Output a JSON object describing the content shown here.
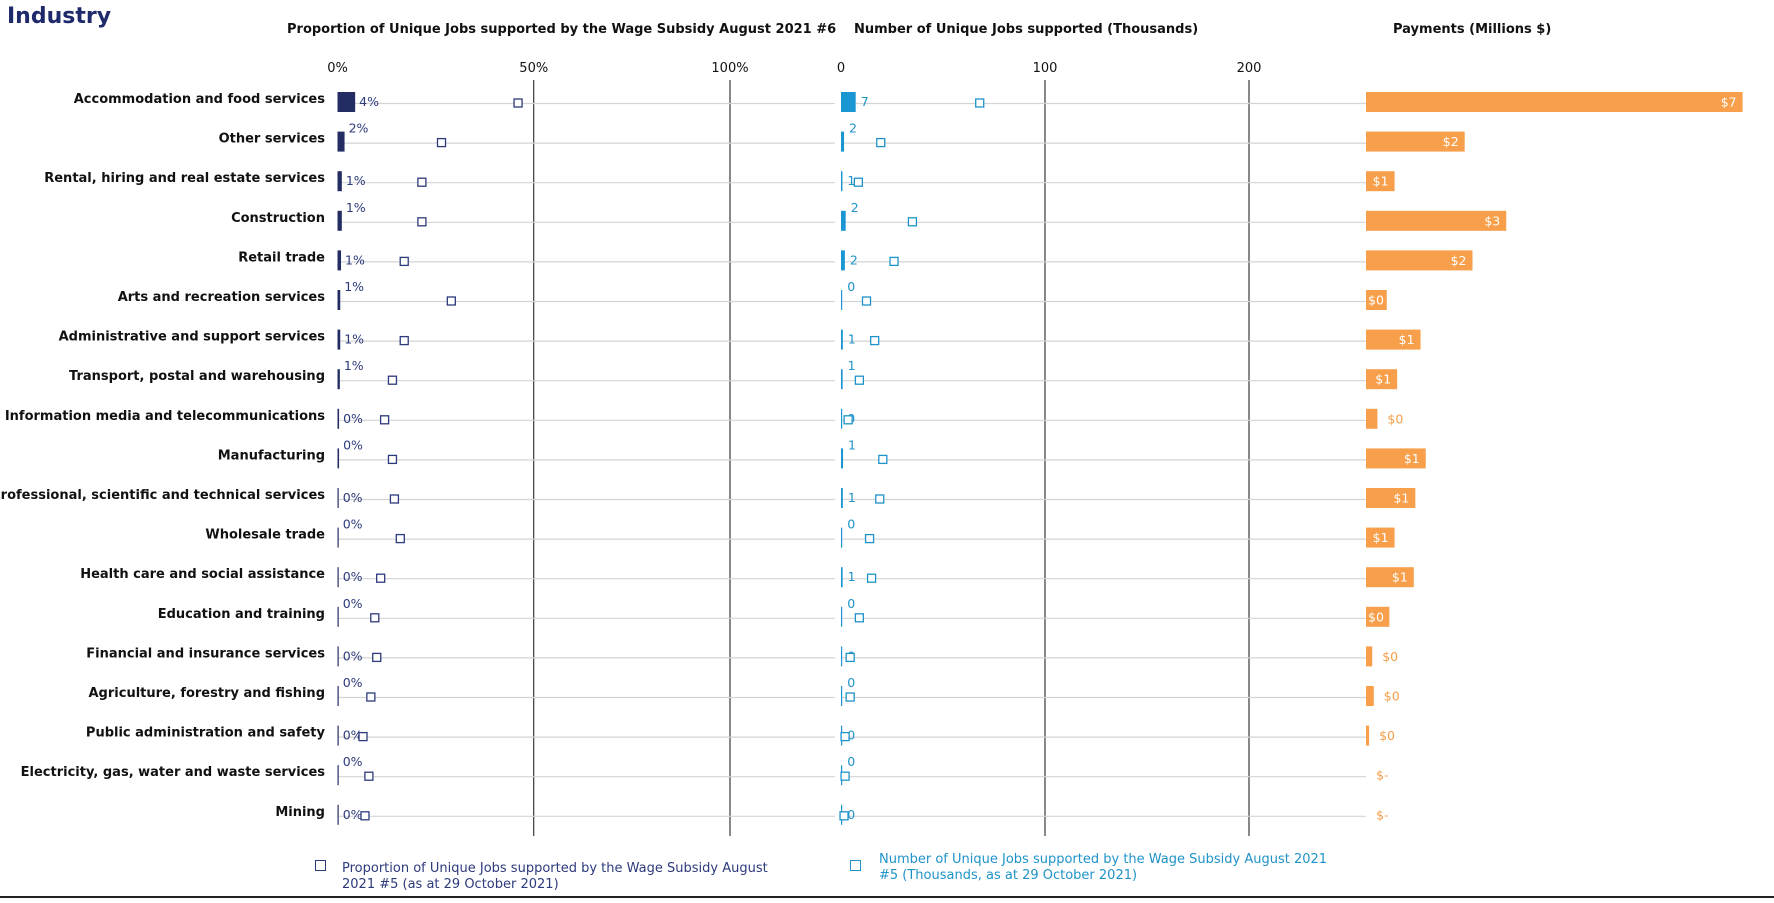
{
  "page": {
    "title": "Industry"
  },
  "chart_data": {
    "type": "bar",
    "categories": [
      "Accommodation and food services",
      "Other services",
      "Rental, hiring and real estate services",
      "Construction",
      "Retail trade",
      "Arts and recreation services",
      "Administrative and support services",
      "Transport, postal and warehousing",
      "Information media and telecommunications",
      "Manufacturing",
      "Professional, scientific and technical services",
      "Wholesale trade",
      "Health care and social assistance",
      "Education and training",
      "Financial and insurance services",
      "Agriculture, forestry and fishing",
      "Public administration and safety",
      "Electricity, gas, water and waste services",
      "Mining"
    ],
    "panels": [
      {
        "id": "proportion",
        "title": "Proportion of Unique Jobs supported by the  Wage Subsidy August 2021 #6",
        "xlim": [
          0,
          1
        ],
        "ticks": [
          0,
          0.5,
          1
        ],
        "tick_labels": [
          "0%",
          "50%",
          "100%"
        ],
        "bar_color": "#232c63",
        "label_color": "#2d3a7c",
        "bar_values": [
          0.045,
          0.018,
          0.011,
          0.011,
          0.009,
          0.007,
          0.007,
          0.006,
          0.004,
          0.004,
          0.003,
          0.003,
          0.003,
          0.002,
          0.001,
          0.001,
          0.001,
          0.0005,
          0.0005
        ],
        "bar_labels": [
          "4%",
          "2%",
          "1%",
          "1%",
          "1%",
          "1%",
          "1%",
          "1%",
          "0%",
          "0%",
          "0%",
          "0%",
          "0%",
          "0%",
          "0%",
          "0%",
          "0%",
          "0%",
          "0%"
        ],
        "marker_values": [
          0.46,
          0.265,
          0.215,
          0.215,
          0.17,
          0.29,
          0.17,
          0.14,
          0.12,
          0.14,
          0.145,
          0.16,
          0.11,
          0.095,
          0.1,
          0.085,
          0.065,
          0.08,
          0.07
        ],
        "marker_name": "Proportion of Unique Jobs supported by the Wage Subsidy August 2021 #5 (as at 29 October 2021)"
      },
      {
        "id": "jobs",
        "title": "Number of Unique Jobs supported (Thousands)",
        "xlim": [
          0,
          225
        ],
        "ticks": [
          0,
          100,
          200
        ],
        "tick_labels": [
          "0",
          "100",
          "200"
        ],
        "bar_color": "#1a96d3",
        "label_color": "#1f93c9",
        "bar_values": [
          7.2,
          1.5,
          0.7,
          2.3,
          1.9,
          0.3,
          0.9,
          0.8,
          0.2,
          1.0,
          0.9,
          0.5,
          0.8,
          0.4,
          0.1,
          0.1,
          0.1,
          0.05,
          0.05
        ],
        "bar_labels": [
          "7",
          "2",
          "1",
          "2",
          "2",
          "0",
          "1",
          "1",
          "0",
          "1",
          "1",
          "0",
          "1",
          "0",
          "0",
          "0",
          "0",
          "0",
          "0"
        ],
        "marker_values": [
          68,
          19.5,
          8.5,
          35,
          26,
          12.5,
          16.5,
          9,
          3.5,
          20.5,
          19,
          14,
          15,
          9,
          4.5,
          4.5,
          2,
          2,
          1.5
        ],
        "marker_name": "Number of Unique Jobs supported by the Wage Subsidy August 2021 #5 (Thousands, as at 29 October 2021)"
      },
      {
        "id": "payments",
        "title": "Payments (Millions $)",
        "xlim": [
          0,
          7.2
        ],
        "bar_color": "#f79f4a",
        "values": [
          7.25,
          1.9,
          0.55,
          2.7,
          2.05,
          0.4,
          1.05,
          0.6,
          0.22,
          1.15,
          0.95,
          0.55,
          0.92,
          0.45,
          0.12,
          0.15,
          0.06,
          0,
          0
        ],
        "bar_labels": [
          "$7",
          "$2",
          "$1",
          "$3",
          "$2",
          "$0",
          "$1",
          "$1",
          "$0",
          "$1",
          "$1",
          "$1",
          "$1",
          "$0",
          "$0",
          "$0",
          "$0",
          "$-",
          "$-"
        ]
      }
    ]
  }
}
